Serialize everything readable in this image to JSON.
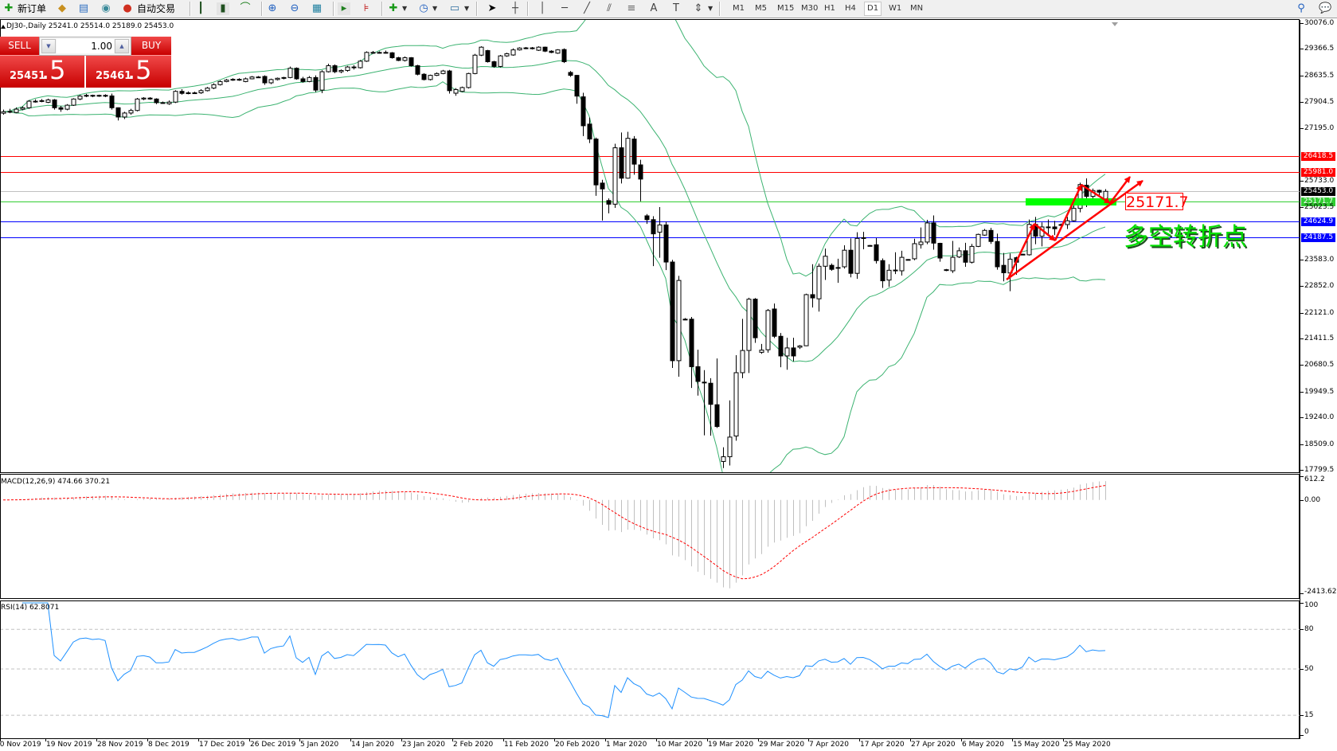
{
  "toolbar": {
    "new_order_label": "新订单",
    "auto_trading_label": "自动交易",
    "icons": [
      "new-order-icon",
      "market-watch-icon",
      "navigator-icon",
      "signals-icon",
      "auto-trading-icon",
      "bar-chart-icon",
      "candlestick-icon",
      "line-chart-icon",
      "zoom-in-icon",
      "zoom-out-icon",
      "tile-windows-icon",
      "auto-scroll-icon",
      "chart-shift-icon",
      "indicators-icon",
      "periods-icon",
      "templates-icon",
      "cursor-icon",
      "crosshair-icon",
      "vertical-line-icon",
      "horizontal-line-icon",
      "trendline-icon",
      "fibo-channel-icon",
      "fibo-retracement-icon",
      "text-icon",
      "text-label-icon",
      "arrows-icon",
      "search-icon",
      "chat-icon"
    ],
    "timeframes": [
      "M1",
      "M5",
      "M15",
      "M30",
      "H1",
      "H4",
      "D1",
      "W1",
      "MN"
    ],
    "selected_timeframe": "D1"
  },
  "chart_title": "DJ30-,Daily  25241.0 25514.0 25189.0 25453.0",
  "trade_panel": {
    "sell_label": "SELL",
    "buy_label": "BUY",
    "lot_value": "1.00",
    "sell_price_main": "25451",
    "sell_price_big": ".5",
    "buy_price_main": "25461",
    "buy_price_big": ".5",
    "color": "#e02020"
  },
  "annotations": {
    "level_box_text": "25171.7",
    "chinese_text": "多空转折点",
    "arrow_color": "#ff0000",
    "zone_color": "#00ff00"
  },
  "macd": {
    "label": "MACD(12,26,9) 474.66 370.21",
    "axis_labels": [
      "612.2",
      "0.00",
      "-2413.62"
    ],
    "range": [
      -2413.62,
      612.2
    ],
    "hist_color": "#c0c0c0",
    "signal_color": "#ff0000"
  },
  "rsi": {
    "label": "RSI(14) 62.8071",
    "axis_labels": [
      "100",
      "80",
      "50",
      "15",
      "0"
    ],
    "levels": [
      80,
      50,
      15
    ],
    "color": "#1e90ff"
  },
  "chart_data": {
    "type": "candlestick",
    "symbol": "DJ30-",
    "timeframe": "Daily",
    "y_range": [
      17799.5,
      30076.0
    ],
    "price_ticks": [
      "30076.0",
      "29366.5",
      "28635.5",
      "27904.5",
      "27195.0",
      "25733.0",
      "25023.5",
      "23583.0",
      "22852.0",
      "22121.0",
      "21411.5",
      "20680.5",
      "19949.5",
      "19240.0",
      "18509.0",
      "17799.5"
    ],
    "levels": [
      {
        "value": "26418.5",
        "color": "#ff0000"
      },
      {
        "value": "25981.0",
        "color": "#ff0000"
      },
      {
        "value": "25453.0",
        "color": "#c0c0c0",
        "label_bg": "#000000"
      },
      {
        "value": "25171.7",
        "color": "#32cd32"
      },
      {
        "value": "24624.9",
        "color": "#0000ff"
      },
      {
        "value": "24187.5",
        "color": "#0000ff"
      }
    ],
    "date_labels": [
      "10 Nov 2019",
      "19 Nov 2019",
      "28 Nov 2019",
      "8 Dec 2019",
      "17 Dec 2019",
      "26 Dec 2019",
      "5 Jan 2020",
      "14 Jan 2020",
      "23 Jan 2020",
      "2 Feb 2020",
      "11 Feb 2020",
      "20 Feb 2020",
      "1 Mar 2020",
      "10 Mar 2020",
      "19 Mar 2020",
      "29 Mar 2020",
      "7 Apr 2020",
      "17 Apr 2020",
      "27 Apr 2020",
      "6 May 2020",
      "15 May 2020",
      "25 May 2020"
    ],
    "bollinger": {
      "period": 20,
      "deviation": 2,
      "color": "#3cb371"
    },
    "ohlc": [
      [
        27600,
        27700,
        27560,
        27640
      ],
      [
        27640,
        27720,
        27600,
        27650
      ],
      [
        27620,
        27760,
        27600,
        27711
      ],
      [
        27711,
        27790,
        27680,
        27750
      ],
      [
        27750,
        27960,
        27720,
        27930
      ],
      [
        27930,
        27980,
        27890,
        27930
      ],
      [
        27930,
        27990,
        27900,
        27945
      ],
      [
        27900,
        28000,
        27880,
        27965
      ],
      [
        27965,
        27990,
        27700,
        27750
      ],
      [
        27750,
        27800,
        27640,
        27710
      ],
      [
        27710,
        27850,
        27680,
        27820
      ],
      [
        27820,
        28010,
        27800,
        27990
      ],
      [
        27990,
        28100,
        27960,
        28070
      ],
      [
        28070,
        28130,
        28040,
        28090
      ],
      [
        28090,
        28110,
        28040,
        28075
      ],
      [
        28075,
        28110,
        28050,
        28090
      ],
      [
        28090,
        28120,
        28040,
        28075
      ],
      [
        28075,
        28140,
        27700,
        27750
      ],
      [
        27750,
        27760,
        27400,
        27495
      ],
      [
        27495,
        27640,
        27440,
        27605
      ],
      [
        27605,
        27720,
        27560,
        27675
      ],
      [
        27675,
        28020,
        27650,
        27990
      ],
      [
        27990,
        28040,
        27960,
        28015
      ],
      [
        28015,
        28040,
        27970,
        27990
      ],
      [
        27990,
        28010,
        27850,
        27890
      ],
      [
        27890,
        27920,
        27860,
        27890
      ],
      [
        27860,
        27950,
        27830,
        27905
      ],
      [
        27905,
        28230,
        27880,
        28200
      ],
      [
        28200,
        28260,
        28110,
        28145
      ],
      [
        28145,
        28200,
        28120,
        28160
      ],
      [
        28160,
        28190,
        28130,
        28160
      ],
      [
        28160,
        28260,
        28130,
        28220
      ],
      [
        28220,
        28320,
        28200,
        28290
      ],
      [
        28290,
        28420,
        28260,
        28385
      ],
      [
        28385,
        28500,
        28360,
        28470
      ],
      [
        28470,
        28540,
        28450,
        28510
      ],
      [
        28510,
        28560,
        28490,
        28530
      ],
      [
        28530,
        28560,
        28490,
        28510
      ],
      [
        28470,
        28580,
        28450,
        28545
      ],
      [
        28545,
        28620,
        28530,
        28595
      ],
      [
        28595,
        28620,
        28570,
        28595
      ],
      [
        28610,
        28640,
        28380,
        28435
      ],
      [
        28435,
        28550,
        28400,
        28525
      ],
      [
        28525,
        28580,
        28500,
        28560
      ],
      [
        28560,
        28600,
        28530,
        28580
      ],
      [
        28580,
        28880,
        28560,
        28835
      ],
      [
        28835,
        28860,
        28520,
        28545
      ],
      [
        28545,
        28600,
        28440,
        28470
      ],
      [
        28470,
        28620,
        28450,
        28580
      ],
      [
        28580,
        28640,
        28180,
        28235
      ],
      [
        28235,
        28780,
        28150,
        28740
      ],
      [
        28740,
        28960,
        28720,
        28905
      ],
      [
        28905,
        28940,
        28700,
        28740
      ],
      [
        28740,
        28800,
        28700,
        28775
      ],
      [
        28775,
        28900,
        28740,
        28870
      ],
      [
        28870,
        28920,
        28800,
        28850
      ],
      [
        28850,
        29060,
        28830,
        29030
      ],
      [
        29030,
        29300,
        29010,
        29270
      ],
      [
        29270,
        29310,
        29240,
        29265
      ],
      [
        29265,
        29300,
        29240,
        29270
      ],
      [
        29270,
        29320,
        29240,
        29260
      ],
      [
        29260,
        29280,
        29100,
        29125
      ],
      [
        29125,
        29150,
        29030,
        29050
      ],
      [
        29050,
        29160,
        29020,
        29125
      ],
      [
        29125,
        29140,
        28880,
        28905
      ],
      [
        28905,
        28930,
        28640,
        28670
      ],
      [
        28670,
        28700,
        28500,
        28525
      ],
      [
        28525,
        28660,
        28500,
        28640
      ],
      [
        28640,
        28720,
        28620,
        28690
      ],
      [
        28690,
        28790,
        28670,
        28760
      ],
      [
        28760,
        28790,
        28140,
        28220
      ],
      [
        28150,
        28290,
        28080,
        28250
      ],
      [
        28200,
        28330,
        28180,
        28305
      ],
      [
        28305,
        28710,
        28280,
        28690
      ],
      [
        28690,
        29230,
        28670,
        29195
      ],
      [
        29195,
        29440,
        29170,
        29415
      ],
      [
        29320,
        29340,
        28990,
        29015
      ],
      [
        29015,
        29040,
        28850,
        28885
      ],
      [
        28885,
        29200,
        28860,
        29175
      ],
      [
        29175,
        29260,
        29150,
        29235
      ],
      [
        29200,
        29380,
        29180,
        29340
      ],
      [
        29340,
        29410,
        29320,
        29390
      ],
      [
        29390,
        29420,
        29360,
        29395
      ],
      [
        29395,
        29420,
        29350,
        29380
      ],
      [
        29330,
        29440,
        29310,
        29415
      ],
      [
        29415,
        29430,
        29280,
        29305
      ],
      [
        29305,
        29330,
        29250,
        29270
      ],
      [
        29250,
        29360,
        29230,
        29340
      ],
      [
        29350,
        29380,
        28980,
        29015
      ],
      [
        28720,
        28760,
        28600,
        28640
      ],
      [
        28640,
        28650,
        27860,
        28070
      ],
      [
        28050,
        28160,
        26970,
        27255
      ],
      [
        27300,
        27480,
        26780,
        26890
      ],
      [
        26890,
        26930,
        25330,
        25630
      ],
      [
        25680,
        25770,
        24650,
        25520
      ],
      [
        25200,
        25260,
        24850,
        25100
      ],
      [
        25100,
        26760,
        25000,
        26650
      ],
      [
        26650,
        27070,
        25670,
        25815
      ],
      [
        25815,
        27090,
        25800,
        26910
      ],
      [
        26890,
        26970,
        25910,
        26200
      ],
      [
        26180,
        26320,
        25180,
        25790
      ],
      [
        24780,
        24830,
        24560,
        24675
      ],
      [
        24675,
        24770,
        23400,
        24285
      ],
      [
        24330,
        25020,
        23630,
        24530
      ],
      [
        24530,
        24620,
        23290,
        23510
      ],
      [
        23510,
        23570,
        20600,
        20800
      ],
      [
        20800,
        23130,
        20360,
        23005
      ],
      [
        21940,
        21970,
        21910,
        21940
      ],
      [
        21940,
        22000,
        20050,
        20635
      ],
      [
        20635,
        21100,
        19840,
        20230
      ],
      [
        20210,
        20540,
        18750,
        20210
      ],
      [
        20180,
        20320,
        18740,
        19600
      ],
      [
        19590,
        20860,
        18950,
        18990
      ],
      [
        18030,
        18420,
        17850,
        18160
      ],
      [
        18160,
        19710,
        17920,
        18700
      ],
      [
        18730,
        20950,
        18600,
        20470
      ],
      [
        20470,
        21950,
        20320,
        21080
      ],
      [
        21080,
        22530,
        20460,
        22490
      ],
      [
        22490,
        22520,
        21290,
        21430
      ],
      [
        21030,
        21260,
        20990,
        21090
      ],
      [
        21100,
        22220,
        21020,
        22180
      ],
      [
        22220,
        22370,
        21420,
        21470
      ],
      [
        21470,
        21560,
        20620,
        20930
      ],
      [
        20930,
        21430,
        20550,
        21150
      ],
      [
        21150,
        21430,
        20780,
        20930
      ],
      [
        21170,
        21230,
        21120,
        21205
      ],
      [
        21210,
        22640,
        21200,
        22615
      ],
      [
        22615,
        23450,
        22260,
        22525
      ],
      [
        22500,
        23470,
        22150,
        23395
      ],
      [
        23395,
        23880,
        23020,
        23670
      ],
      [
        23420,
        23470,
        23270,
        23310
      ],
      [
        23360,
        23600,
        22940,
        23360
      ],
      [
        23380,
        23970,
        23330,
        23835
      ],
      [
        23835,
        24160,
        23090,
        23200
      ],
      [
        23200,
        24330,
        23050,
        24160
      ],
      [
        24160,
        24340,
        23860,
        24180
      ],
      [
        23960,
        23980,
        23950,
        23965
      ],
      [
        23985,
        24170,
        23470,
        23550
      ],
      [
        23550,
        23610,
        22800,
        22995
      ],
      [
        23015,
        23450,
        22830,
        23285
      ],
      [
        23290,
        23780,
        23180,
        23290
      ],
      [
        23270,
        23820,
        23140,
        23640
      ],
      [
        23580,
        23590,
        23570,
        23575
      ],
      [
        23600,
        24150,
        23560,
        24015
      ],
      [
        23990,
        24460,
        23880,
        24060
      ],
      [
        24060,
        24670,
        24000,
        24585
      ],
      [
        24585,
        24790,
        23850,
        24030
      ],
      [
        24025,
        24040,
        23520,
        23620
      ],
      [
        23300,
        23320,
        23260,
        23290
      ],
      [
        23270,
        24090,
        23210,
        23640
      ],
      [
        23650,
        23910,
        23620,
        23820
      ],
      [
        23820,
        24040,
        23380,
        23505
      ],
      [
        23505,
        24010,
        23470,
        23940
      ],
      [
        23940,
        24290,
        23920,
        24270
      ],
      [
        24250,
        24420,
        24230,
        24380
      ],
      [
        24380,
        24450,
        24010,
        24075
      ],
      [
        24075,
        24290,
        23300,
        23380
      ],
      [
        23420,
        23760,
        22980,
        23215
      ],
      [
        23210,
        23745,
        22710,
        23590
      ],
      [
        23630,
        23660,
        23160,
        23505
      ],
      [
        23720,
        23740,
        23710,
        23725
      ],
      [
        23710,
        24680,
        23690,
        24545
      ],
      [
        24545,
        24750,
        24000,
        24220
      ],
      [
        24220,
        24600,
        23940,
        24475
      ],
      [
        24475,
        24680,
        24250,
        24475
      ],
      [
        24475,
        24640,
        24250,
        24425
      ],
      [
        24520,
        24570,
        24500,
        24540
      ],
      [
        24540,
        24750,
        24420,
        24645
      ],
      [
        24645,
        25090,
        24620,
        24985
      ],
      [
        24985,
        25690,
        24875,
        25640
      ],
      [
        25620,
        25810,
        25020,
        25315
      ],
      [
        25315,
        25530,
        25160,
        25475
      ],
      [
        25480,
        25500,
        25300,
        25430
      ],
      [
        25241,
        25514,
        25189,
        25453
      ]
    ]
  }
}
